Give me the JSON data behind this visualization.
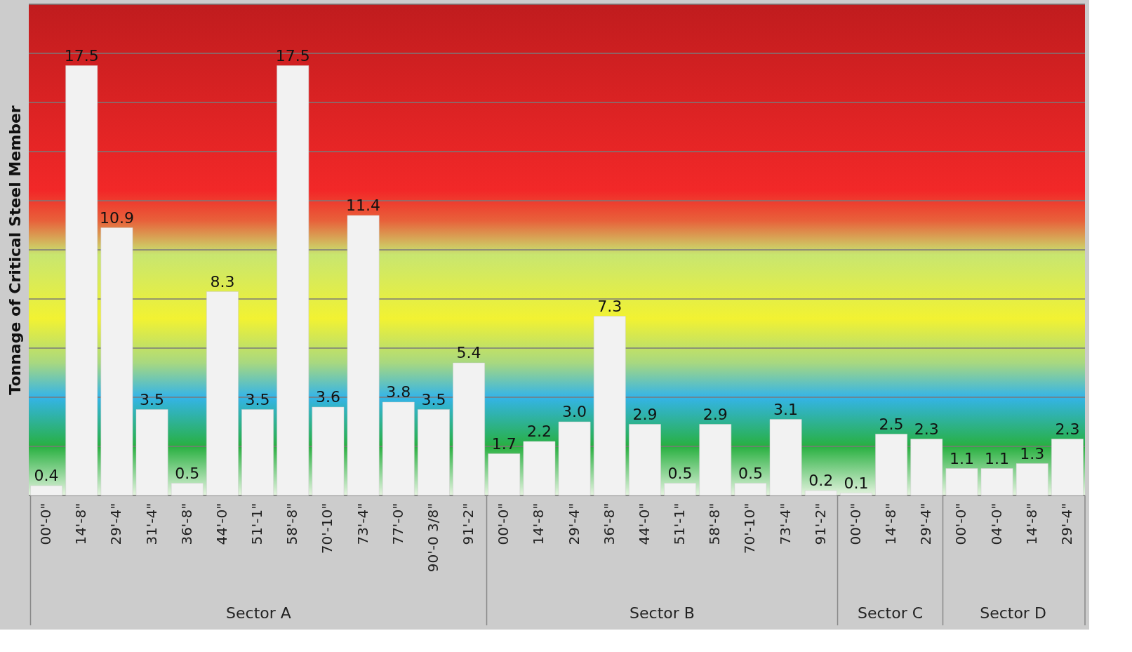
{
  "chart_data": {
    "type": "bar",
    "ylabel": "Tonnage of Critical Steel Member",
    "categories": [
      "00'-0\"",
      "14'-8\"",
      "29'-4\"",
      "31'-4\"",
      "36'-8\"",
      "44'-0\"",
      "51'-1\"",
      "58'-8\"",
      "70'-10\"",
      "73'-4\"",
      "77'-0\"",
      "90'-0 3/8\"",
      "91'-2\"",
      "00'-0\"",
      "14'-8\"",
      "29'-4\"",
      "36'-8\"",
      "44'-0\"",
      "51'-1\"",
      "58'-8\"",
      "70'-10\"",
      "73'-4\"",
      "91'-2\"",
      "00'-0\"",
      "14'-8\"",
      "29'-4\"",
      "00'-0\"",
      "04'-0\"",
      "14'-8\"",
      "29'-4\""
    ],
    "values": [
      0.4,
      17.5,
      10.9,
      3.5,
      0.5,
      8.3,
      3.5,
      17.5,
      3.6,
      11.4,
      3.8,
      3.5,
      5.4,
      1.7,
      2.2,
      3.0,
      7.3,
      2.9,
      0.5,
      2.9,
      0.5,
      3.1,
      0.2,
      0.1,
      2.5,
      2.3,
      1.1,
      1.1,
      1.3,
      2.3
    ],
    "color": "#f2f2f2",
    "annotations": [
      "Sector A",
      "Sector B",
      "Sector C",
      "Sector D"
    ],
    "ylim": [
      0,
      20
    ],
    "yticks": [
      {
        "value": 0,
        "label": null
      },
      {
        "value": 2,
        "label": null
      },
      {
        "value": 4,
        "label": null
      },
      {
        "value": 6,
        "label": null
      },
      {
        "value": 8,
        "label": null
      },
      {
        "value": 10,
        "label": null
      },
      {
        "value": 12,
        "label": null
      },
      {
        "value": 14,
        "label": null
      },
      {
        "value": 16,
        "label": null
      },
      {
        "value": 18,
        "label": null
      },
      {
        "value": 20,
        "label": null
      }
    ],
    "value_labels": [
      "0.4",
      "17.5",
      "10.9",
      "3.5",
      "0.5",
      "8.3",
      "3.5",
      "17.5",
      "3.6",
      "11.4",
      "3.8",
      "3.5",
      "5.4",
      "1.7",
      "2.2",
      "3.0",
      "7.3",
      "2.9",
      "0.5",
      "2.9",
      "0.5",
      "3.1",
      "0.2",
      "0.1",
      "2.5",
      "2.3",
      "1.1",
      "1.1",
      "1.3",
      "2.3"
    ],
    "tick_labels": "x",
    "grid": "y"
  }
}
